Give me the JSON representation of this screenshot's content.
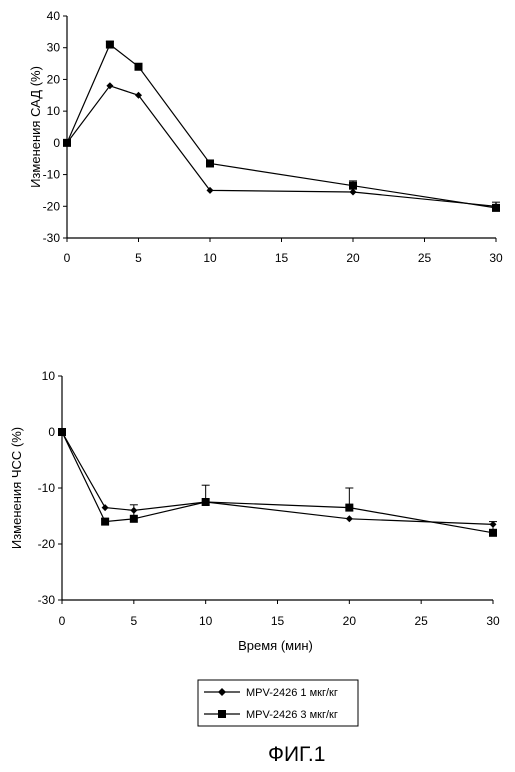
{
  "figure_label": "ФИГ.1",
  "chart_data": [
    {
      "type": "line",
      "title": "",
      "xlabel": "",
      "ylabel": "Изменения САД (%)",
      "xlim": [
        0,
        30
      ],
      "ylim": [
        -30,
        40
      ],
      "xticks": [
        "0",
        "5",
        "10",
        "15",
        "20",
        "25",
        "30"
      ],
      "yticks": [
        "40",
        "30",
        "20",
        "10",
        "0",
        "-10",
        "-20",
        "-30"
      ],
      "grid": false,
      "series": [
        {
          "name": "MPV-2426 1 мкг/кг",
          "marker": "diamond",
          "x": [
            0,
            3,
            5,
            10,
            20,
            30
          ],
          "y": [
            0,
            18,
            15,
            -15,
            -15.5,
            -20
          ],
          "err": [
            0,
            0,
            0,
            0,
            0,
            0
          ]
        },
        {
          "name": "MPV-2426 3 мкг/кг",
          "marker": "square",
          "x": [
            0,
            3,
            5,
            10,
            20,
            30
          ],
          "y": [
            0,
            31,
            24,
            -6.5,
            -13.5,
            -20.5
          ],
          "err": [
            0,
            1,
            1,
            0.7,
            1.5,
            1.8
          ]
        }
      ]
    },
    {
      "type": "line",
      "title": "",
      "xlabel": "Время (мин)",
      "ylabel": "Изменения ЧСС (%)",
      "xlim": [
        0,
        30
      ],
      "ylim": [
        -30,
        10
      ],
      "xticks": [
        "0",
        "5",
        "10",
        "15",
        "20",
        "25",
        "30"
      ],
      "yticks": [
        "10",
        "0",
        "-10",
        "-20",
        "-30"
      ],
      "grid": false,
      "series": [
        {
          "name": "MPV-2426 1 мкг/кг",
          "marker": "diamond",
          "x": [
            0,
            3,
            5,
            10,
            20,
            30
          ],
          "y": [
            0,
            -13.5,
            -14,
            -12.5,
            -15.5,
            -16.5
          ],
          "err": [
            0,
            0,
            0,
            0,
            0,
            0
          ]
        },
        {
          "name": "MPV-2426 3 мкг/кг",
          "marker": "square",
          "x": [
            0,
            3,
            5,
            10,
            20,
            30
          ],
          "y": [
            0,
            -16,
            -15.5,
            -12.5,
            -13.5,
            -18
          ],
          "err": [
            0,
            0.5,
            2.5,
            3,
            3.5,
            2
          ]
        }
      ]
    }
  ],
  "legend": {
    "placement": "bottom-center",
    "items": [
      {
        "label": "MPV-2426 1 мкг/кг",
        "marker": "diamond"
      },
      {
        "label": "MPV-2426 3 мкг/кг",
        "marker": "square"
      }
    ]
  }
}
